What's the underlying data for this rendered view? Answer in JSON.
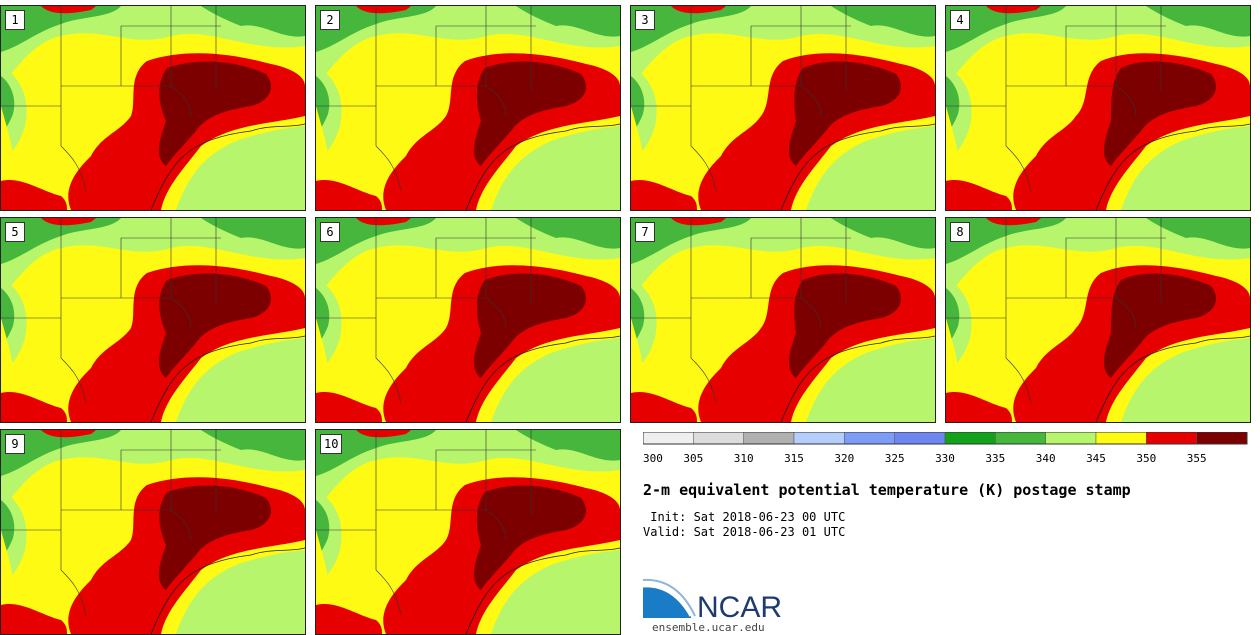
{
  "figure": {
    "title": "2-m equivalent potential temperature (K) postage stamp",
    "init_line": " Init: Sat 2018-06-23 00 UTC",
    "valid_line": "Valid: Sat 2018-06-23 01 UTC",
    "site": "ensemble.ucar.edu",
    "logo_text": "NCAR"
  },
  "members": [
    "1",
    "2",
    "3",
    "4",
    "5",
    "6",
    "7",
    "8",
    "9",
    "10"
  ],
  "colorbar": {
    "ticks": [
      "300",
      "305",
      "310",
      "315",
      "320",
      "325",
      "330",
      "335",
      "340",
      "345",
      "350",
      "355"
    ],
    "colors": [
      "#efefef",
      "#dcdcdc",
      "#b0b0b0",
      "#b4cdfa",
      "#7d9cf7",
      "#6f86f0",
      "#12a21a",
      "#46b63c",
      "#b7f56c",
      "#fefa14",
      "#e60000",
      "#7d0000"
    ]
  }
}
